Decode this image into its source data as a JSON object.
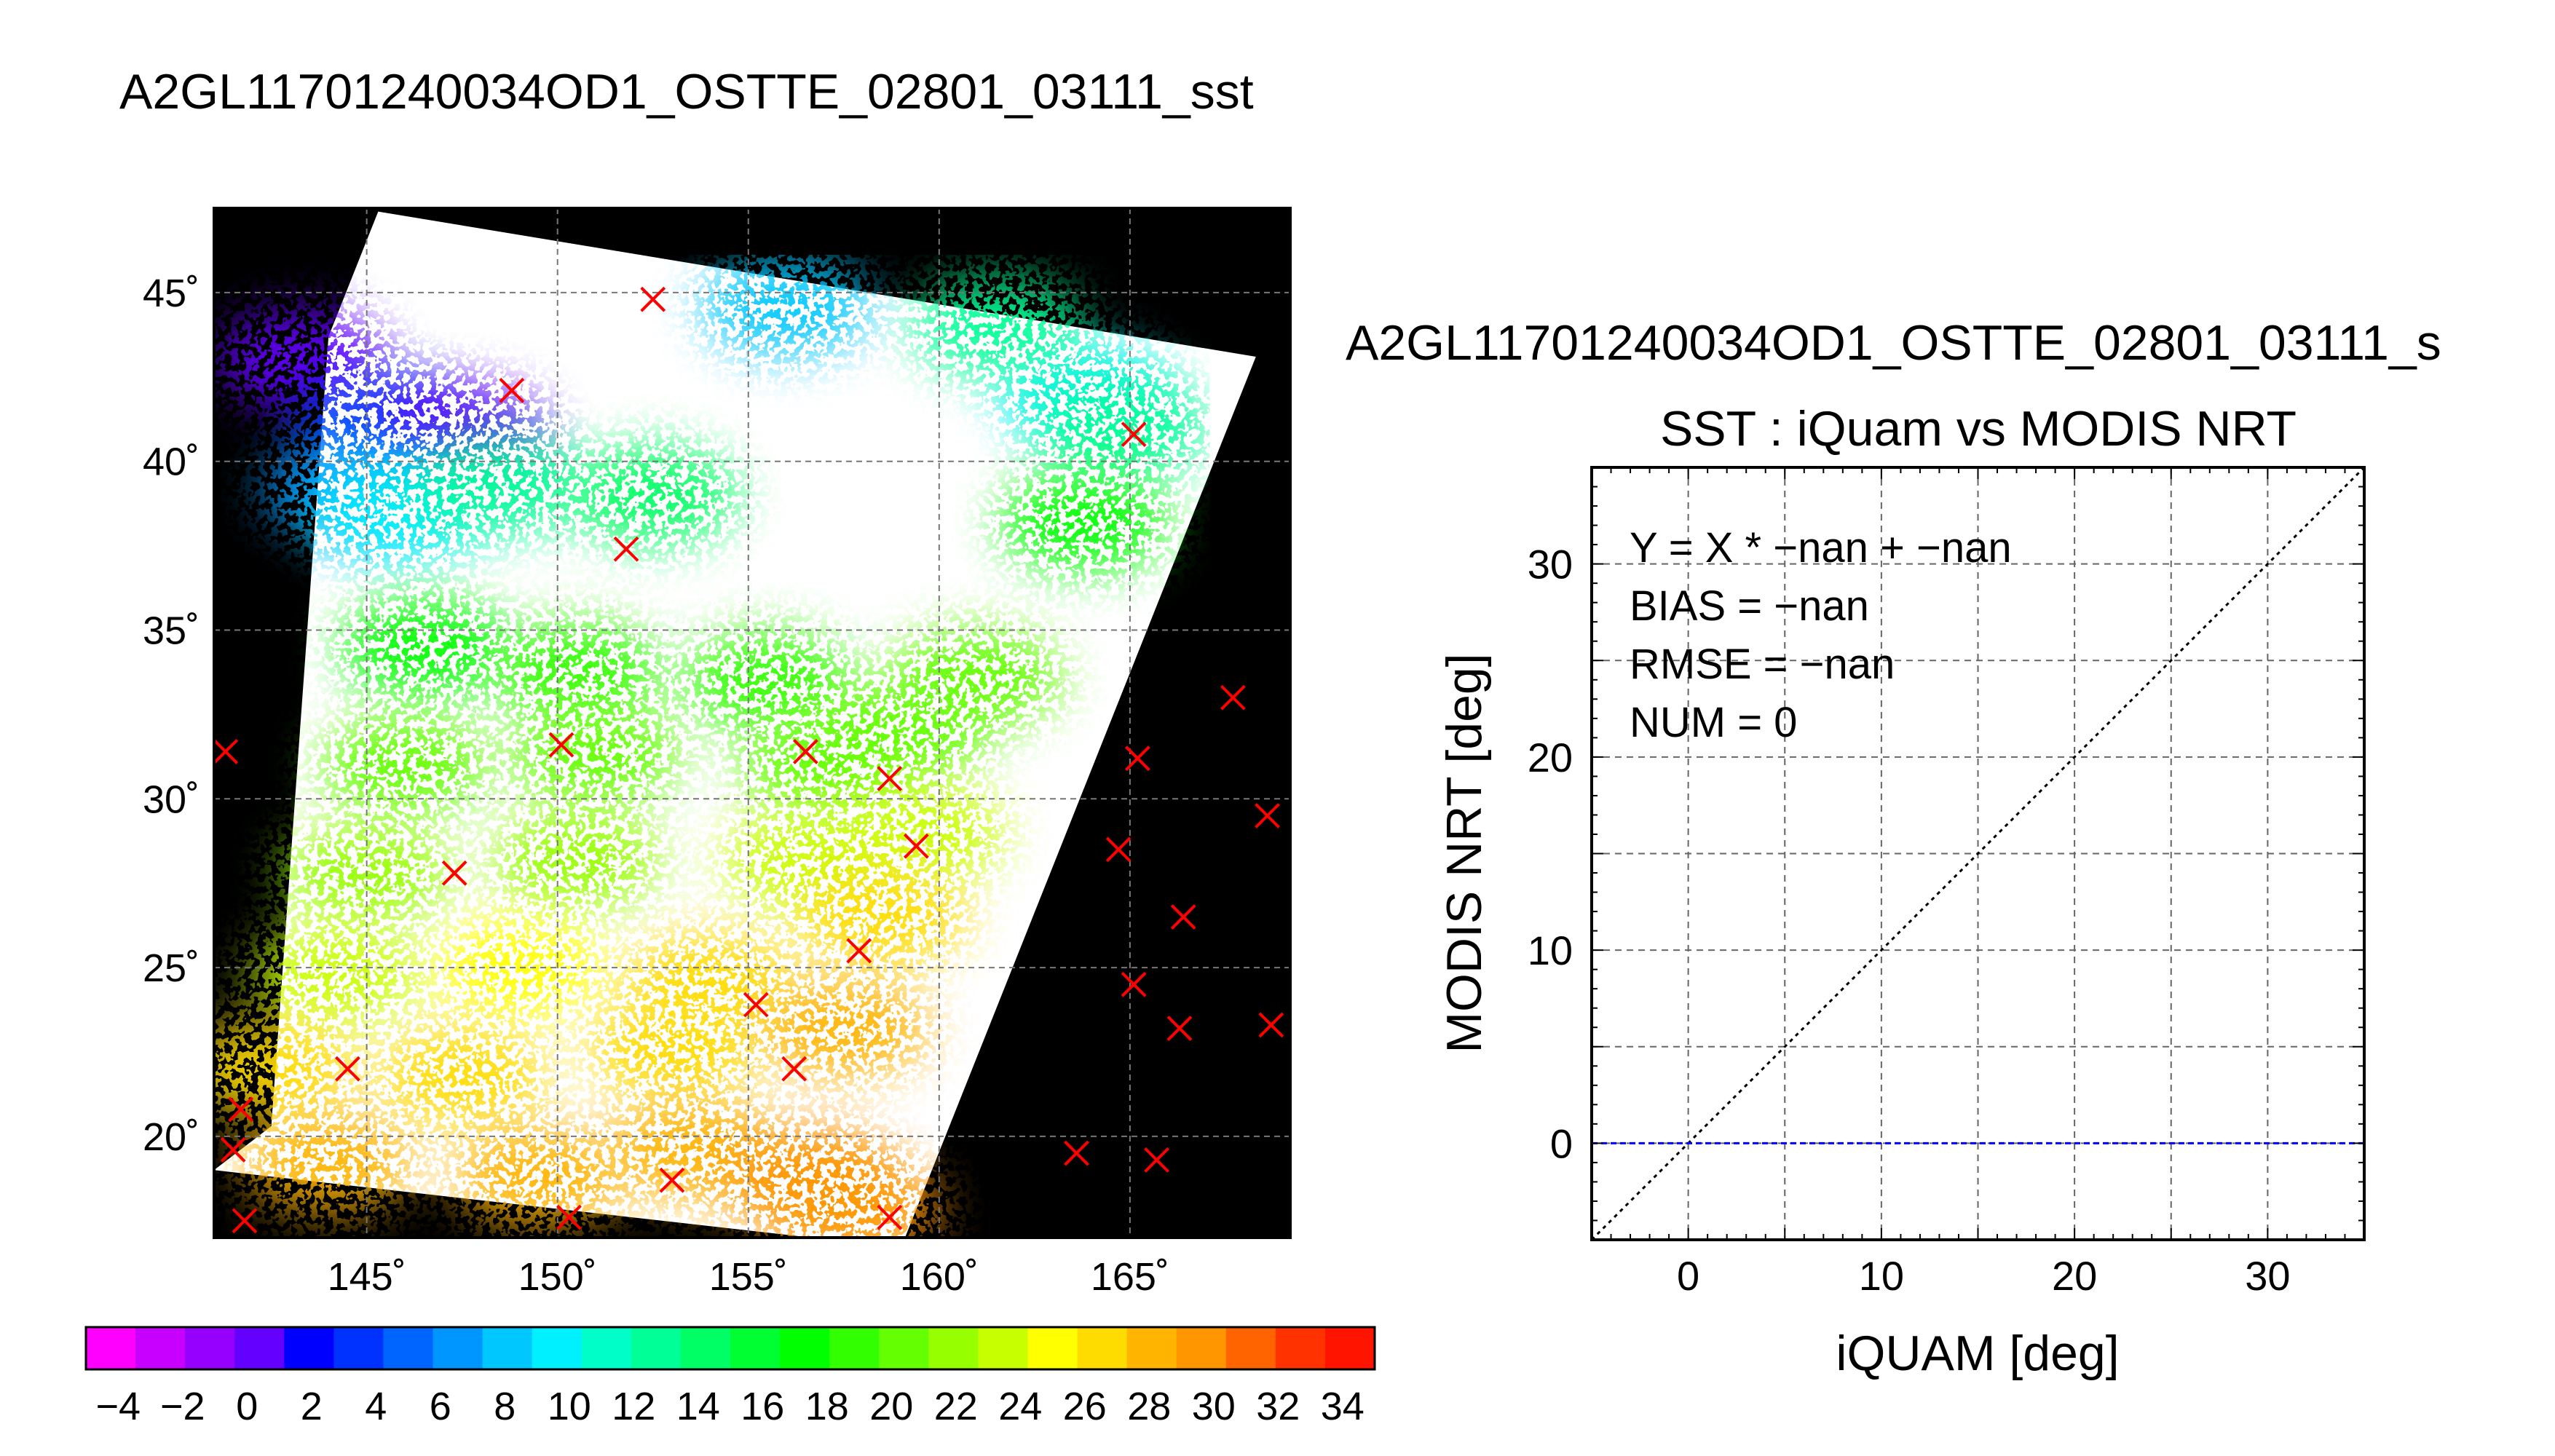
{
  "figure": {
    "main_title": "A2GL11701240034OD1_OSTTE_02801_03111_sst"
  },
  "chart_data": [
    {
      "type": "map",
      "title": "",
      "lon_range": [
        141,
        169.2
      ],
      "lat_range": [
        17,
        47.5
      ],
      "lon_ticks": [
        145,
        150,
        155,
        160,
        165
      ],
      "lat_ticks": [
        20,
        25,
        30,
        35,
        40,
        45
      ],
      "lon_tick_labels": [
        "145˚",
        "150˚",
        "155˚",
        "160˚",
        "165˚"
      ],
      "lat_tick_labels": [
        "20˚",
        "25˚",
        "30˚",
        "35˚",
        "40˚",
        "45˚"
      ],
      "background_color": "#000000",
      "grid": true,
      "swath_corners_lonlat": [
        [
          145.3,
          47.4
        ],
        [
          168.3,
          43.1
        ],
        [
          159.0,
          16.7
        ],
        [
          141.0,
          19.0
        ],
        [
          142.5,
          20.3
        ],
        [
          144.0,
          43.7
        ]
      ],
      "sst_patches": [
        {
          "lon": 143.3,
          "lat": 43.0,
          "sst": 0
        },
        {
          "lon": 145.4,
          "lat": 41.1,
          "sst": 3
        },
        {
          "lon": 147.5,
          "lat": 40.8,
          "sst": 1
        },
        {
          "lon": 144.5,
          "lat": 39.2,
          "sst": 7
        },
        {
          "lon": 145.8,
          "lat": 38.5,
          "sst": 10
        },
        {
          "lon": 148.5,
          "lat": 39.3,
          "sst": 13
        },
        {
          "lon": 152.5,
          "lat": 39.0,
          "sst": 14
        },
        {
          "lon": 163.8,
          "lat": 42.0,
          "sst": 10
        },
        {
          "lon": 164.8,
          "lat": 41.0,
          "sst": 12
        },
        {
          "lon": 163.8,
          "lat": 38.2,
          "sst": 17
        },
        {
          "lon": 161.5,
          "lat": 44.0,
          "sst": 13
        },
        {
          "lon": 156.0,
          "lat": 44.6,
          "sst": 8
        },
        {
          "lon": 146.5,
          "lat": 34.5,
          "sst": 18
        },
        {
          "lon": 150.5,
          "lat": 33.8,
          "sst": 19
        },
        {
          "lon": 155.5,
          "lat": 33.5,
          "sst": 19
        },
        {
          "lon": 161.0,
          "lat": 33.6,
          "sst": 20
        },
        {
          "lon": 146.0,
          "lat": 31.0,
          "sst": 20
        },
        {
          "lon": 151.0,
          "lat": 31.3,
          "sst": 21
        },
        {
          "lon": 157.0,
          "lat": 31.0,
          "sst": 21
        },
        {
          "lon": 159.0,
          "lat": 32.0,
          "sst": 21
        },
        {
          "lon": 145.0,
          "lat": 27.8,
          "sst": 22
        },
        {
          "lon": 150.5,
          "lat": 28.2,
          "sst": 22
        },
        {
          "lon": 156.5,
          "lat": 28.2,
          "sst": 23
        },
        {
          "lon": 159.5,
          "lat": 29.0,
          "sst": 23
        },
        {
          "lon": 144.2,
          "lat": 24.8,
          "sst": 24
        },
        {
          "lon": 149.0,
          "lat": 25.0,
          "sst": 25
        },
        {
          "lon": 154.0,
          "lat": 24.6,
          "sst": 26
        },
        {
          "lon": 158.5,
          "lat": 26.5,
          "sst": 26
        },
        {
          "lon": 142.5,
          "lat": 22.0,
          "sst": 26
        },
        {
          "lon": 147.5,
          "lat": 21.8,
          "sst": 27
        },
        {
          "lon": 153.0,
          "lat": 22.6,
          "sst": 27
        },
        {
          "lon": 157.5,
          "lat": 23.2,
          "sst": 28
        },
        {
          "lon": 144.0,
          "lat": 19.2,
          "sst": 28
        },
        {
          "lon": 149.5,
          "lat": 18.8,
          "sst": 28
        },
        {
          "lon": 153.5,
          "lat": 19.6,
          "sst": 28
        },
        {
          "lon": 156.5,
          "lat": 18.8,
          "sst": 30
        },
        {
          "lon": 157.8,
          "lat": 17.9,
          "sst": 30
        }
      ],
      "stations": [
        {
          "lon": 152.5,
          "lat": 44.8
        },
        {
          "lon": 148.8,
          "lat": 42.1
        },
        {
          "lon": 165.1,
          "lat": 40.8
        },
        {
          "lon": 151.8,
          "lat": 37.4
        },
        {
          "lon": 167.7,
          "lat": 33.0
        },
        {
          "lon": 141.3,
          "lat": 31.4
        },
        {
          "lon": 150.1,
          "lat": 31.6
        },
        {
          "lon": 156.5,
          "lat": 31.4
        },
        {
          "lon": 158.7,
          "lat": 30.6
        },
        {
          "lon": 165.2,
          "lat": 31.2
        },
        {
          "lon": 168.6,
          "lat": 29.5
        },
        {
          "lon": 159.4,
          "lat": 28.6
        },
        {
          "lon": 164.7,
          "lat": 28.5
        },
        {
          "lon": 147.3,
          "lat": 27.8
        },
        {
          "lon": 166.4,
          "lat": 26.5
        },
        {
          "lon": 157.9,
          "lat": 25.5
        },
        {
          "lon": 165.1,
          "lat": 24.5
        },
        {
          "lon": 155.2,
          "lat": 23.9
        },
        {
          "lon": 166.3,
          "lat": 23.2
        },
        {
          "lon": 168.7,
          "lat": 23.3
        },
        {
          "lon": 156.2,
          "lat": 22.0
        },
        {
          "lon": 144.5,
          "lat": 22.0
        },
        {
          "lon": 141.7,
          "lat": 20.8
        },
        {
          "lon": 141.5,
          "lat": 19.6
        },
        {
          "lon": 163.6,
          "lat": 19.5
        },
        {
          "lon": 165.7,
          "lat": 19.3
        },
        {
          "lon": 153.0,
          "lat": 18.7
        },
        {
          "lon": 141.8,
          "lat": 17.5
        },
        {
          "lon": 150.3,
          "lat": 17.6
        },
        {
          "lon": 158.7,
          "lat": 17.6
        }
      ],
      "station_color": "#ff0000"
    },
    {
      "type": "colorbar",
      "range": [
        -5,
        35
      ],
      "tick_values": [
        -4,
        -2,
        0,
        2,
        4,
        6,
        8,
        10,
        12,
        14,
        16,
        18,
        20,
        22,
        24,
        26,
        28,
        30,
        32,
        34
      ],
      "tick_labels": [
        "−4",
        "−2",
        "0",
        "2",
        "4",
        "6",
        "8",
        "10",
        "12",
        "14",
        "16",
        "18",
        "20",
        "22",
        "24",
        "26",
        "28",
        "30",
        "32",
        "34"
      ],
      "colors": [
        "#ff00ff",
        "#c800ff",
        "#9600ff",
        "#6400ff",
        "#0000ff",
        "#0032ff",
        "#0064ff",
        "#0096ff",
        "#00c8ff",
        "#00f0ff",
        "#00ffc8",
        "#00ff96",
        "#00ff64",
        "#00ff32",
        "#00ff00",
        "#32ff00",
        "#64ff00",
        "#96ff00",
        "#c8ff00",
        "#ffff00",
        "#ffdc00",
        "#ffb400",
        "#ff9600",
        "#ff6400",
        "#ff3200",
        "#ff1400"
      ]
    },
    {
      "type": "scatter",
      "title": "SST : iQuam vs MODIS NRT",
      "subtitle": "A2GL11701240034OD1_OSTTE_02801_03111_s",
      "xlabel": "iQUAM [deg]",
      "ylabel": "MODIS NRT [deg]",
      "xlim": [
        -5,
        35
      ],
      "ylim": [
        -5,
        35
      ],
      "xticks": [
        0,
        10,
        20,
        30
      ],
      "yticks": [
        0,
        10,
        20,
        30
      ],
      "grid": true,
      "grid_step": 5,
      "points": [],
      "series": [
        {
          "style": "black-dotted",
          "x": [
            -5,
            35
          ],
          "y": [
            -5,
            35
          ]
        },
        {
          "style": "blue-dashed",
          "x": [
            -5,
            35
          ],
          "y": [
            0,
            0
          ]
        }
      ],
      "annotations": [
        "Y = X * −nan + −nan",
        "BIAS = −nan",
        "RMSE = −nan",
        "NUM = 0"
      ]
    }
  ]
}
